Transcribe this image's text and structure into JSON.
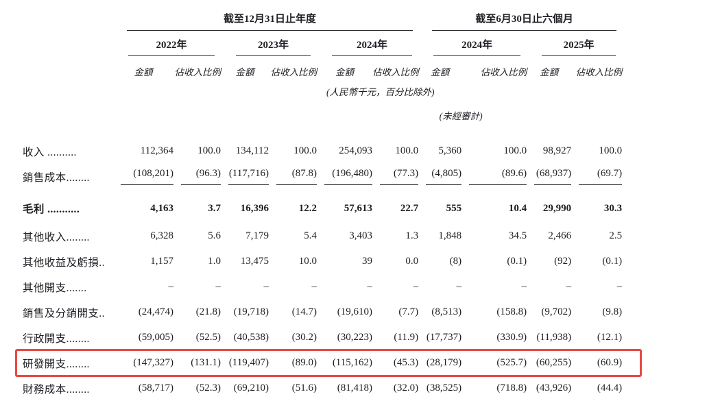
{
  "colors": {
    "highlight_box": "#e64a44",
    "rule_line": "#2b2b30",
    "text": "#1e1e24"
  },
  "header": {
    "group_annual": "截至12月31日止年度",
    "group_interim": "截至6月30日止六個月",
    "years": [
      "2022年",
      "2023年",
      "2024年",
      "2024年",
      "2025年"
    ],
    "amount_label": "金額",
    "pct_label": "佔收入比例",
    "currency_note": "(人民幣千元，百分比除外)",
    "unaudited_note": "(未經審計)"
  },
  "rows": [
    {
      "name": "revenue",
      "label": "收入 ..........",
      "bold": false,
      "rule_below": false,
      "gap_above": false,
      "highlighted": false,
      "values": [
        "112,364",
        "100.0",
        "134,112",
        "100.0",
        "254,093",
        "100.0",
        "5,360",
        "100.0",
        "98,927",
        "100.0"
      ]
    },
    {
      "name": "cost-of-sales",
      "label": "銷售成本........",
      "bold": false,
      "rule_below": true,
      "gap_above": false,
      "highlighted": false,
      "values": [
        "(108,201)",
        "(96.3)",
        "(117,716)",
        "(87.8)",
        "(196,480)",
        "(77.3)",
        "(4,805)",
        "(89.6)",
        "(68,937)",
        "(69.7)"
      ]
    },
    {
      "name": "gross-profit",
      "label": "毛利 ...........",
      "bold": true,
      "rule_below": false,
      "gap_above": true,
      "highlighted": false,
      "values": [
        "4,163",
        "3.7",
        "16,396",
        "12.2",
        "57,613",
        "22.7",
        "555",
        "10.4",
        "29,990",
        "30.3"
      ]
    },
    {
      "name": "other-income",
      "label": "其他收入........",
      "bold": false,
      "rule_below": false,
      "gap_above": false,
      "highlighted": false,
      "values": [
        "6,328",
        "5.6",
        "7,179",
        "5.4",
        "3,403",
        "1.3",
        "1,848",
        "34.5",
        "2,466",
        "2.5"
      ]
    },
    {
      "name": "other-gains-and-losses",
      "label": "其他收益及虧損..",
      "bold": false,
      "rule_below": false,
      "gap_above": false,
      "highlighted": false,
      "values": [
        "1,157",
        "1.0",
        "13,475",
        "10.0",
        "39",
        "0.0",
        "(8)",
        "(0.1)",
        "(92)",
        "(0.1)"
      ]
    },
    {
      "name": "other-expenses",
      "label": "其他開支.......",
      "bold": false,
      "rule_below": false,
      "gap_above": false,
      "highlighted": false,
      "values": [
        "–",
        "–",
        "–",
        "–",
        "–",
        "–",
        "–",
        "–",
        "–",
        "–"
      ]
    },
    {
      "name": "selling-and-distribution-expenses",
      "label": "銷售及分銷開支..",
      "bold": false,
      "rule_below": false,
      "gap_above": false,
      "highlighted": false,
      "values": [
        "(24,474)",
        "(21.8)",
        "(19,718)",
        "(14.7)",
        "(19,610)",
        "(7.7)",
        "(8,513)",
        "(158.8)",
        "(9,702)",
        "(9.8)"
      ]
    },
    {
      "name": "administrative-expenses",
      "label": "行政開支........",
      "bold": false,
      "rule_below": false,
      "gap_above": false,
      "highlighted": false,
      "values": [
        "(59,005)",
        "(52.5)",
        "(40,538)",
        "(30.2)",
        "(30,223)",
        "(11.9)",
        "(17,737)",
        "(330.9)",
        "(11,938)",
        "(12.1)"
      ]
    },
    {
      "name": "rd-expenses",
      "label": "研發開支........",
      "bold": false,
      "rule_below": false,
      "gap_above": false,
      "highlighted": true,
      "values": [
        "(147,327)",
        "(131.1)",
        "(119,407)",
        "(89.0)",
        "(115,162)",
        "(45.3)",
        "(28,179)",
        "(525.7)",
        "(60,255)",
        "(60.9)"
      ]
    },
    {
      "name": "finance-costs",
      "label": "財務成本........",
      "bold": false,
      "rule_below": false,
      "gap_above": false,
      "highlighted": false,
      "values": [
        "(58,717)",
        "(52.3)",
        "(69,210)",
        "(51.6)",
        "(81,418)",
        "(32.0)",
        "(38,525)",
        "(718.8)",
        "(43,926)",
        "(44.4)"
      ]
    }
  ]
}
